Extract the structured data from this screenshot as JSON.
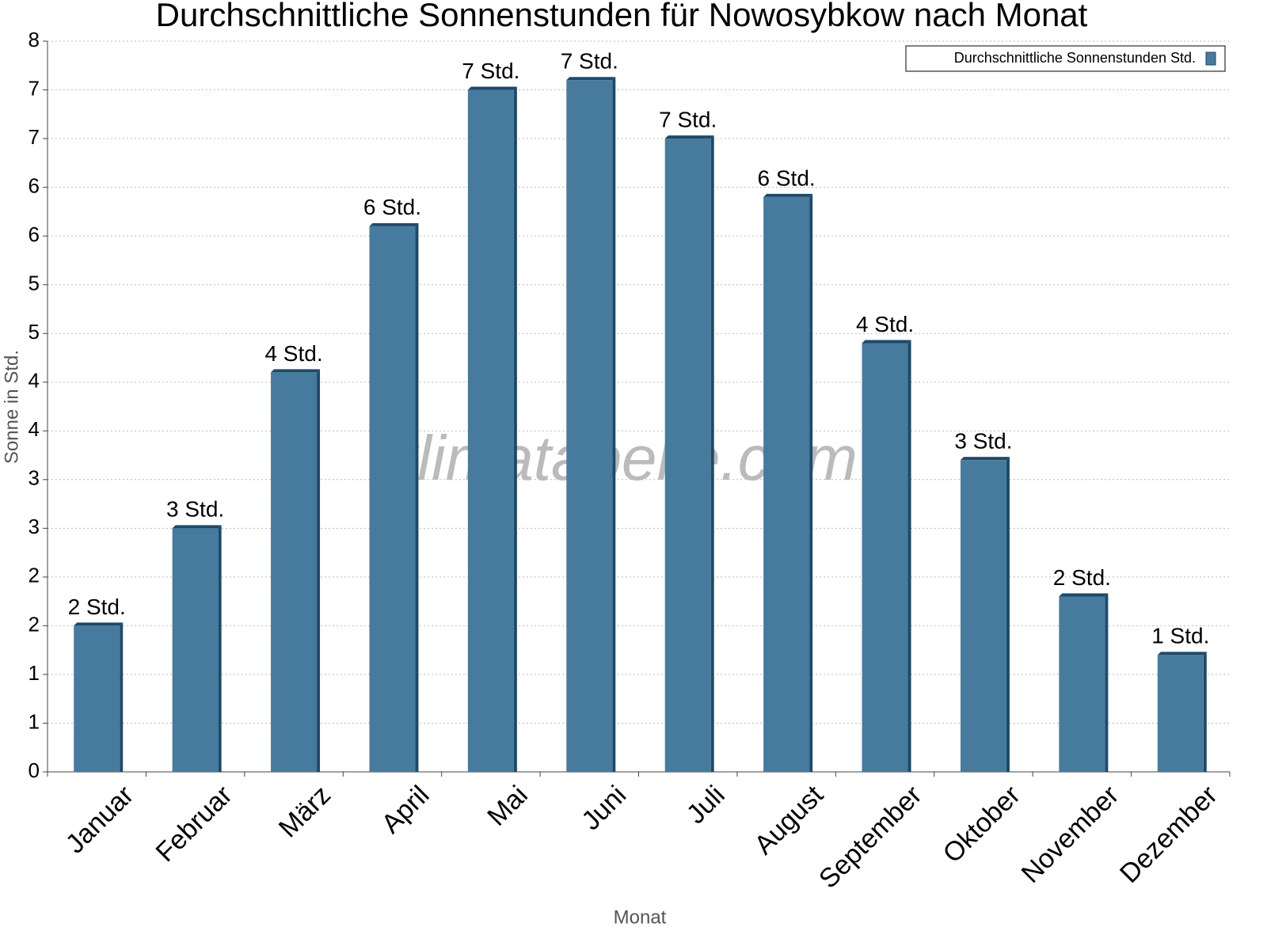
{
  "chart_data": {
    "type": "bar",
    "title": "Durchschnittliche Sonnenstunden für Nowosybkow nach Monat",
    "x_label": "Monat",
    "y_label": "Sonne in Std.",
    "watermark": "klimatabelle.com",
    "categories": [
      "Januar",
      "Februar",
      "März",
      "April",
      "Mai",
      "Juni",
      "Juli",
      "August",
      "September",
      "Oktober",
      "November",
      "Dezember"
    ],
    "series": [
      {
        "name": "Durchschnittliche Sonnenstunden Std.",
        "color": "#467b9e",
        "values": [
          1.5,
          2.5,
          4.1,
          5.6,
          7.0,
          7.1,
          6.5,
          5.9,
          4.4,
          3.2,
          1.8,
          1.2
        ],
        "value_labels": [
          "2 Std.",
          "3 Std.",
          "4 Std.",
          "6 Std.",
          "7 Std.",
          "7 Std.",
          "7 Std.",
          "6 Std.",
          "4 Std.",
          "3 Std.",
          "2 Std.",
          "1 Std."
        ]
      }
    ],
    "ylim": [
      0,
      7.5
    ],
    "yticks": [
      0,
      {
        "value": 0.5,
        "label": "1"
      },
      1,
      {
        "value": 1.5,
        "label": "2"
      },
      2,
      {
        "value": 2.5,
        "label": "3"
      },
      3,
      {
        "value": 3.5,
        "label": "4"
      },
      4,
      {
        "value": 4.5,
        "label": "5"
      },
      5,
      {
        "value": 5.5,
        "label": "6"
      },
      6,
      {
        "value": 6.5,
        "label": "7"
      },
      7,
      {
        "value": 7.5,
        "label": "8"
      }
    ],
    "grid": true,
    "legend": "top-right"
  }
}
